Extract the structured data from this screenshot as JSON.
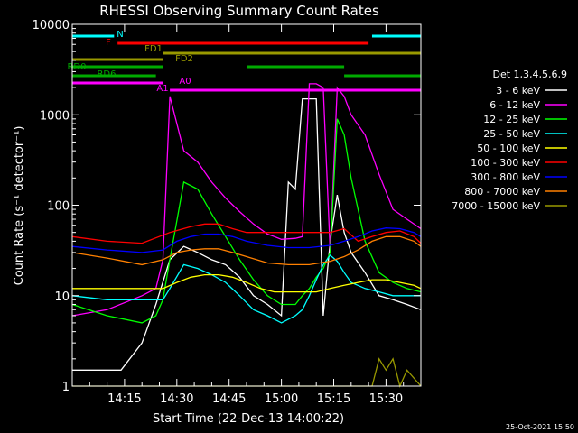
{
  "chart_data": {
    "type": "line",
    "title": "RHESSI Observing Summary Count Rates",
    "xlabel": "Start Time (22-Dec-13 14:00:22)",
    "ylabel": "Count Rate (s⁻¹ detector⁻¹)",
    "yscale": "log",
    "ylim": [
      1,
      10000
    ],
    "xlim_minutes": [
      0,
      100
    ],
    "x_ticks": [
      "14:15",
      "14:30",
      "14:45",
      "15:00",
      "15:15",
      "15:30"
    ],
    "x_tick_minutes": [
      15,
      30,
      45,
      60,
      75,
      90
    ],
    "y_ticks": [
      "1",
      "10",
      "100",
      "1000",
      "10000"
    ],
    "y_tick_values": [
      1,
      10,
      100,
      1000,
      10000
    ],
    "legend_title": "Det 1,3,4,5,6,9",
    "legend_position": "right",
    "timestamp": "25-Oct-2021 15:50",
    "series": [
      {
        "name": "3 - 6 keV",
        "color": "#ffffff",
        "x": [
          0,
          5,
          10,
          14,
          20,
          24,
          28,
          32,
          36,
          40,
          44,
          48,
          52,
          56,
          60,
          62,
          64,
          66,
          68,
          70,
          72,
          74,
          76,
          78,
          80,
          84,
          88,
          92,
          96,
          100
        ],
        "values": [
          1.5,
          1.5,
          1.5,
          1.5,
          3,
          8,
          25,
          35,
          30,
          25,
          22,
          16,
          10,
          8,
          6,
          180,
          150,
          1500,
          1500,
          1500,
          6,
          40,
          130,
          50,
          30,
          18,
          10,
          9,
          8,
          7
        ]
      },
      {
        "name": "6 - 12 keV",
        "color": "#ff00ff",
        "x": [
          0,
          10,
          20,
          24,
          26,
          28,
          32,
          36,
          40,
          44,
          48,
          52,
          56,
          58,
          60,
          64,
          66,
          68,
          70,
          72,
          74,
          76,
          78,
          80,
          84,
          88,
          92,
          96,
          100
        ],
        "values": [
          6,
          7,
          10,
          12,
          25,
          1600,
          400,
          300,
          180,
          120,
          85,
          62,
          48,
          45,
          42,
          43,
          45,
          2200,
          2200,
          2000,
          30,
          2000,
          1600,
          1000,
          600,
          220,
          90,
          70,
          55
        ]
      },
      {
        "name": "12 - 25 keV",
        "color": "#00ff00",
        "x": [
          0,
          10,
          20,
          24,
          26,
          28,
          32,
          36,
          40,
          44,
          48,
          52,
          56,
          60,
          64,
          66,
          68,
          70,
          72,
          74,
          76,
          78,
          80,
          84,
          88,
          92,
          96,
          100
        ],
        "values": [
          8,
          6,
          5,
          6,
          9,
          25,
          180,
          150,
          80,
          45,
          25,
          15,
          10,
          8,
          8,
          10,
          12,
          16,
          20,
          30,
          900,
          600,
          200,
          40,
          18,
          14,
          12,
          11
        ]
      },
      {
        "name": "25 - 50 keV",
        "color": "#00ffff",
        "x": [
          0,
          10,
          20,
          24,
          26,
          28,
          32,
          36,
          40,
          44,
          48,
          52,
          56,
          60,
          64,
          66,
          68,
          70,
          72,
          74,
          76,
          78,
          80,
          84,
          88,
          92,
          96,
          100
        ],
        "values": [
          10,
          9,
          9,
          9,
          9,
          12,
          22,
          20,
          17,
          14,
          10,
          7,
          6,
          5,
          6,
          7,
          10,
          15,
          22,
          28,
          24,
          18,
          14,
          12,
          11,
          10,
          10,
          10
        ]
      },
      {
        "name": "50 - 100 keV",
        "color": "#ffff00",
        "x": [
          0,
          10,
          20,
          26,
          30,
          34,
          38,
          42,
          46,
          50,
          54,
          58,
          62,
          66,
          70,
          74,
          78,
          82,
          86,
          90,
          94,
          98,
          100
        ],
        "values": [
          12,
          12,
          12,
          12,
          14,
          16,
          17,
          17,
          16,
          14,
          12,
          11,
          11,
          11,
          11,
          12,
          13,
          14,
          15,
          15,
          14,
          13,
          12
        ]
      },
      {
        "name": "100 - 300 keV",
        "color": "#ff0000",
        "x": [
          0,
          10,
          20,
          28,
          34,
          38,
          42,
          46,
          50,
          56,
          62,
          70,
          74,
          78,
          82,
          86,
          90,
          94,
          98,
          100
        ],
        "values": [
          45,
          40,
          38,
          50,
          58,
          62,
          62,
          55,
          50,
          50,
          50,
          50,
          50,
          55,
          40,
          45,
          50,
          52,
          45,
          38
        ]
      },
      {
        "name": "300 - 800 keV",
        "color": "#0000ff",
        "x": [
          0,
          10,
          20,
          26,
          30,
          34,
          38,
          42,
          46,
          50,
          56,
          62,
          68,
          74,
          78,
          82,
          86,
          90,
          94,
          98,
          100
        ],
        "values": [
          35,
          32,
          30,
          32,
          40,
          45,
          48,
          48,
          45,
          40,
          36,
          34,
          34,
          36,
          40,
          45,
          52,
          56,
          55,
          50,
          45
        ]
      },
      {
        "name": "800 - 7000 keV",
        "color": "#ff8000",
        "x": [
          0,
          10,
          20,
          26,
          30,
          34,
          38,
          42,
          46,
          50,
          56,
          62,
          68,
          74,
          78,
          82,
          86,
          90,
          94,
          98,
          100
        ],
        "values": [
          30,
          26,
          22,
          25,
          30,
          32,
          33,
          33,
          30,
          27,
          23,
          22,
          22,
          24,
          27,
          32,
          40,
          45,
          45,
          40,
          35
        ]
      },
      {
        "name": "7000 - 15000 keV",
        "color": "#999900",
        "x": [
          0,
          10,
          20,
          30,
          40,
          50,
          60,
          70,
          80,
          86,
          88,
          90,
          92,
          94,
          96,
          100
        ],
        "values": [
          1,
          1,
          1,
          1,
          1,
          1,
          1,
          1,
          1,
          1,
          2,
          1.5,
          2,
          1,
          1.5,
          1
        ]
      }
    ],
    "state_bars": [
      {
        "label": "N",
        "color": "#00ffff"
      },
      {
        "label": "F",
        "color": "#ff0000"
      },
      {
        "label": "FD1",
        "color": "#999900"
      },
      {
        "label": "FD2",
        "color": "#999900"
      },
      {
        "label": "RD0",
        "color": "#00aa00"
      },
      {
        "label": "RD6",
        "color": "#00aa00"
      },
      {
        "label": "A1",
        "color": "#ff00ff"
      },
      {
        "label": "A0",
        "color": "#ff00ff"
      }
    ]
  }
}
